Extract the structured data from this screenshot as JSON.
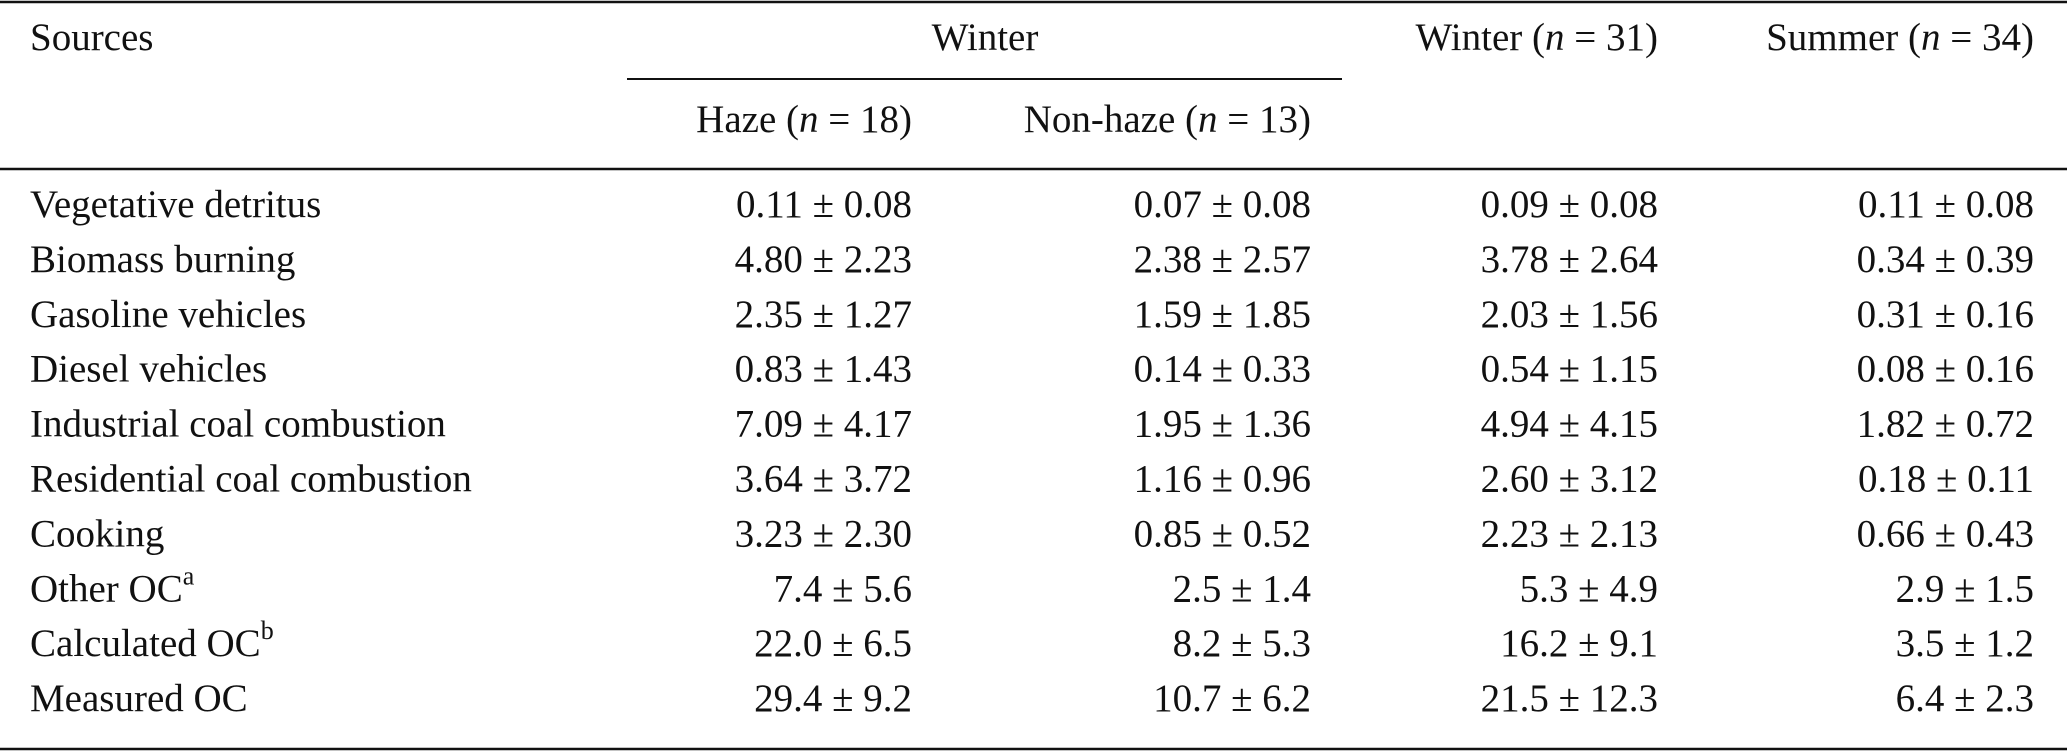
{
  "table": {
    "header": {
      "sources": "Sources",
      "winter": "Winter",
      "winter_all": [
        "Winter (",
        "n",
        " = 31)"
      ],
      "summer": [
        "Summer (",
        "n",
        " = 34)"
      ],
      "haze": [
        "Haze (",
        "n",
        " = 18)"
      ],
      "nonhaze": [
        "Non-haze (",
        "n",
        " = 13)"
      ]
    },
    "rows": [
      {
        "source": "Vegetative detritus",
        "values": [
          "0.11 ± 0.08",
          "0.07 ± 0.08",
          "0.09 ± 0.08",
          "0.11 ± 0.08"
        ]
      },
      {
        "source": "Biomass burning",
        "values": [
          "4.80 ± 2.23",
          "2.38 ± 2.57",
          "3.78 ± 2.64",
          "0.34 ± 0.39"
        ]
      },
      {
        "source": "Gasoline vehicles",
        "values": [
          "2.35 ± 1.27",
          "1.59 ± 1.85",
          "2.03 ± 1.56",
          "0.31 ± 0.16"
        ]
      },
      {
        "source": "Diesel vehicles",
        "values": [
          "0.83 ± 1.43",
          "0.14 ± 0.33",
          "0.54 ± 1.15",
          "0.08 ± 0.16"
        ]
      },
      {
        "source": "Industrial coal combustion",
        "values": [
          "7.09 ± 4.17",
          "1.95 ± 1.36",
          "4.94 ± 4.15",
          "1.82 ± 0.72"
        ]
      },
      {
        "source": "Residential coal combustion",
        "values": [
          "3.64 ± 3.72",
          "1.16 ± 0.96",
          "2.60 ± 3.12",
          "0.18 ± 0.11"
        ]
      },
      {
        "source": "Cooking",
        "values": [
          "3.23 ± 2.30",
          "0.85 ± 0.52",
          "2.23 ± 2.13",
          "0.66 ± 0.43"
        ]
      },
      {
        "source": "Other OC",
        "note": "a",
        "values": [
          "7.4 ± 5.6",
          "2.5 ± 1.4",
          "5.3 ± 4.9",
          "2.9 ± 1.5"
        ]
      },
      {
        "source": "Calculated OC",
        "note": "b",
        "values": [
          "22.0 ± 6.5",
          "8.2 ± 5.3",
          "16.2 ± 9.1",
          "3.5 ± 1.2"
        ]
      },
      {
        "source": "Measured OC",
        "values": [
          "29.4 ± 9.2",
          "10.7 ± 6.2",
          "21.5 ± 12.3",
          "6.4 ± 2.3"
        ]
      }
    ]
  }
}
